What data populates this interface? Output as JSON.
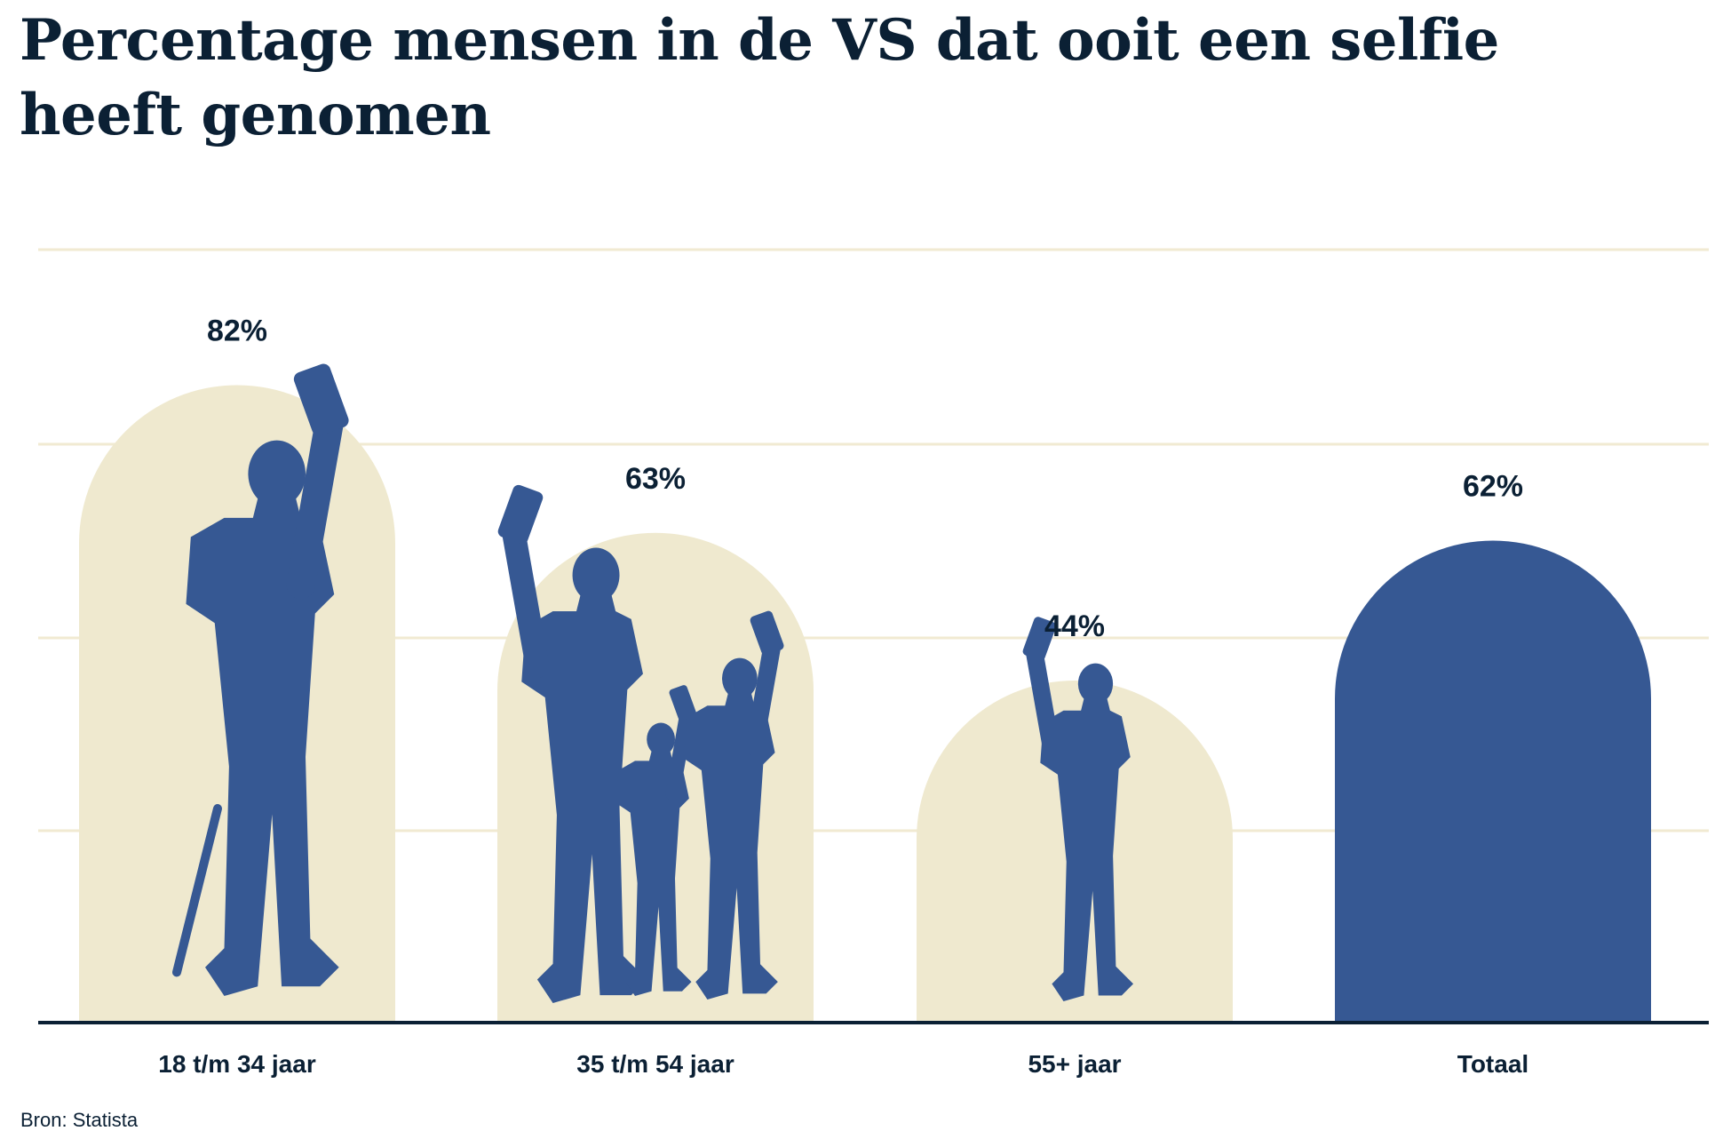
{
  "title": "Percentage mensen in de VS dat ooit een selfie heeft genomen",
  "source": "Bron: Statista",
  "colors": {
    "highlight": "#365893",
    "muted": "#efe9cf",
    "text": "#0b2034",
    "grid": "#f1ead2"
  },
  "chart_data": {
    "type": "bar",
    "title": "Percentage mensen in de VS dat ooit een selfie heeft genomen",
    "categories": [
      "18 t/m 34 jaar",
      "35 t/m 54 jaar",
      "55+ jaar",
      "Totaal"
    ],
    "values": [
      82,
      63,
      44,
      62
    ],
    "data_labels": [
      "82%",
      "63%",
      "44%",
      "62%"
    ],
    "highlighted": [
      false,
      false,
      false,
      true
    ],
    "bar_shape": "arch",
    "illustrations": [
      "person-selfie-skateboard-icon",
      "family-selfie-icon",
      "elderly-man-selfie-icon",
      null
    ],
    "ylim": [
      0,
      100
    ],
    "grid": true,
    "xlabel": "",
    "ylabel": ""
  }
}
